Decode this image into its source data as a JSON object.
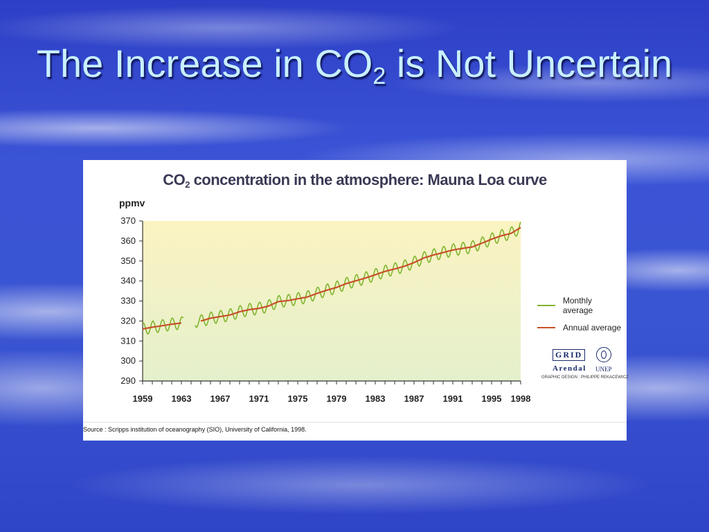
{
  "slide": {
    "title_main": "The Increase in CO",
    "title_sub": "2",
    "title_rest": " is Not Uncertain"
  },
  "chart_data": {
    "type": "line",
    "title": "CO2 concentration in the atmosphere: Mauna Loa curve",
    "title_parts": {
      "main": "CO",
      "sub": "2",
      "rest": " concentration in the atmosphere: Mauna Loa curve"
    },
    "ylabel": "ppmv",
    "xlim": [
      1959,
      1998
    ],
    "ylim": [
      290,
      370
    ],
    "y_ticks": [
      370,
      360,
      350,
      340,
      330,
      320,
      310,
      300,
      290
    ],
    "x_tick_labels": [
      "1959",
      "1963",
      "1967",
      "1971",
      "1975",
      "1979",
      "1983",
      "1987",
      "1991",
      "1995",
      "1998"
    ],
    "grid": false,
    "legend_position": "right",
    "series": [
      {
        "name": "Monthly average",
        "color": "#7fb52f",
        "seasonal_amplitude": 3,
        "gaps": [
          [
            1963.2,
            1964.4
          ]
        ]
      },
      {
        "name": "Annual average",
        "color": "#c8502a",
        "x": [
          1959,
          1960,
          1961,
          1962,
          1963,
          1964,
          1965,
          1966,
          1967,
          1968,
          1969,
          1970,
          1971,
          1972,
          1973,
          1974,
          1975,
          1976,
          1977,
          1978,
          1979,
          1980,
          1981,
          1982,
          1983,
          1984,
          1985,
          1986,
          1987,
          1988,
          1989,
          1990,
          1991,
          1992,
          1993,
          1994,
          1995,
          1996,
          1997,
          1998
        ],
        "y": [
          316.0,
          316.9,
          317.6,
          318.4,
          319.0,
          319.6,
          320.0,
          321.4,
          322.2,
          323.0,
          324.6,
          325.7,
          326.3,
          327.5,
          329.7,
          330.2,
          331.1,
          332.0,
          333.8,
          335.4,
          336.8,
          338.7,
          340.1,
          341.5,
          343.1,
          344.8,
          346.0,
          347.4,
          349.2,
          351.5,
          353.0,
          354.2,
          355.5,
          356.3,
          357.0,
          358.9,
          360.9,
          362.6,
          363.8,
          366.7
        ]
      }
    ],
    "gaps_annual": [
      [
        1963.2,
        1965.0
      ]
    ],
    "logo": {
      "grid": "GRID",
      "arendal": "Arendal",
      "unep": "UNEP"
    },
    "credit": "GRAPHIC DESIGN : PHILIPPE REKACEWICZ",
    "source": "Source : Scripps institution of oceanography (SIO), University of California, 1998."
  },
  "colors": {
    "plot_background_top": "#fbf3c2",
    "plot_background_bottom": "#e4f0cc",
    "axis": "#333333",
    "monthly": "#7fb52f",
    "annual": "#c8502a"
  }
}
